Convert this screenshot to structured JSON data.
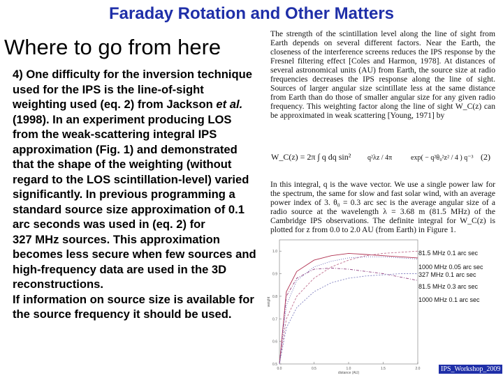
{
  "slide": {
    "title": "Faraday Rotation and Other Matters",
    "heading": "Where to go from here",
    "body_part1": "4) One difficulty for the inversion technique used for the IPS is the line-of-sight weighting used (eq. 2) from Jackson ",
    "body_etal": "et al.",
    "body_part2": " (1998). In an experiment producing LOS from the weak-scattering integral IPS approximation (Fig. 1) and demonstrated that the shape of the weighting (without regard to the LOS scintillation-level) varied significantly.  In previous programming a standard source size approximation of 0.1 arc seconds was used in (eq. 2) for",
    "body_line2": "327 MHz sources. This approximation becomes less secure when few sources and high-frequency data are used in the 3D reconstructions.",
    "body_line3": "If information on source size is available for the source frequency it should be used."
  },
  "paper": {
    "para1": "The strength of the scintillation level along the line of sight from Earth depends on several different factors. Near the Earth, the closeness of the interference screens reduces the IPS response by the Fresnel filtering effect [Coles and Harmon, 1978]. At distances of several astronomical units (AU) from Earth, the source size at radio frequencies decreases the IPS response along the line of sight. Sources of larger angular size scintillate less at the same distance from Earth than do those of smaller angular size for any given radio frequency. This weighting factor along the line of sight W_C(z) can be approximated in weak scattering [Young, 1971] by",
    "equation_lhs": "W_C(z) = 2π ∫ q dq sin²",
    "equation_frac": "q²λz / 4π",
    "equation_exp": "exp( − q²θ₀²z² / 4 ) q⁻³",
    "equation_number": "(2)",
    "para2": "In this integral, q is the wave vector. We use a single power law for the spectrum, the same for slow and fast solar wind, with an average power index of 3. θ₀ = 0.3 arc sec is the average angular size of a radio source at the wavelength λ = 3.68 m (81.5 MHz) of the Cambridge IPS observations. The definite integral for W_C(z) is plotted for z from 0.0 to 2.0 AU (from Earth) in Figure 1."
  },
  "chart_data": {
    "type": "line",
    "xlabel": "distance (AU)",
    "ylabel": "weight",
    "x_ticks": [
      "0.0",
      "0.5",
      "1.0",
      "1.5",
      "2.0"
    ],
    "y_ticks": [
      "0.5",
      "0.6",
      "0.7",
      "0.8",
      "0.9",
      "1.0"
    ],
    "xlim": [
      0.0,
      2.0
    ],
    "ylim": [
      0.5,
      1.05
    ],
    "legend": [
      "81.5 MHz 0.1 arc sec",
      "1000 MHz 0.05 arc sec",
      "327 MHz 0.1 arc sec",
      "81.5 MHz 0.3 arc sec",
      "1000 MHz 0.1 arc sec"
    ],
    "series": [
      {
        "name": "81.5 MHz 0.1 arc sec",
        "x": [
          0.0,
          0.1,
          0.25,
          0.5,
          0.75,
          1.0,
          1.25,
          1.5,
          1.75,
          2.0
        ],
        "values": [
          0.5,
          0.82,
          0.91,
          0.96,
          0.98,
          0.99,
          0.985,
          0.98,
          0.975,
          0.97
        ]
      },
      {
        "name": "1000 MHz 0.05 arc sec",
        "x": [
          0.0,
          0.1,
          0.25,
          0.5,
          0.75,
          1.0,
          1.25,
          1.5,
          1.75,
          2.0
        ],
        "values": [
          0.5,
          0.7,
          0.8,
          0.88,
          0.93,
          0.96,
          0.98,
          0.99,
          0.995,
          1.0
        ]
      },
      {
        "name": "327 MHz 0.1 arc sec",
        "x": [
          0.0,
          0.1,
          0.25,
          0.5,
          0.75,
          1.0,
          1.25,
          1.5,
          1.75,
          2.0
        ],
        "values": [
          0.5,
          0.76,
          0.87,
          0.93,
          0.955,
          0.97,
          0.975,
          0.975,
          0.97,
          0.965
        ]
      },
      {
        "name": "81.5 MHz 0.3 arc sec",
        "x": [
          0.0,
          0.1,
          0.25,
          0.5,
          0.75,
          1.0,
          1.25,
          1.5,
          1.75,
          2.0
        ],
        "values": [
          0.5,
          0.8,
          0.88,
          0.92,
          0.925,
          0.92,
          0.91,
          0.9,
          0.885,
          0.87
        ]
      },
      {
        "name": "1000 MHz 0.1 arc sec",
        "x": [
          0.0,
          0.1,
          0.25,
          0.5,
          0.75,
          1.0,
          1.25,
          1.5,
          1.75,
          2.0
        ],
        "values": [
          0.5,
          0.66,
          0.75,
          0.82,
          0.86,
          0.88,
          0.89,
          0.895,
          0.9,
          0.9
        ]
      }
    ],
    "colors": [
      "#b03050",
      "#c07090",
      "#6060b0",
      "#904080",
      "#8080c0"
    ]
  },
  "footer": {
    "tag": "IPS_Workshop_2009"
  }
}
